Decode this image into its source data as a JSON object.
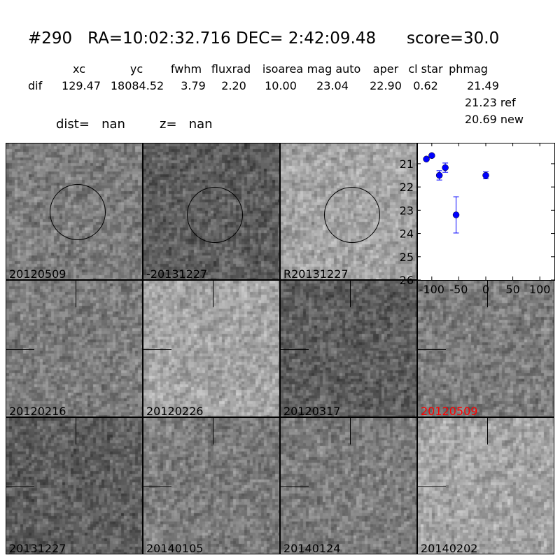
{
  "title": "#290   RA=10:02:32.716 DEC= 2:42:09.48      score=30.0",
  "table": {
    "headers": [
      "xc",
      "yc",
      "fwhm",
      "fluxrad",
      "isoarea",
      "mag auto",
      "aper",
      "cl star",
      "phmag"
    ],
    "row_label": "dif",
    "values": [
      "129.47",
      "18084.52",
      "3.79",
      "2.20",
      "10.00",
      "23.04",
      "22.90",
      "0.62",
      "21.49"
    ],
    "phmag_ref": "21.23 ref",
    "phmag_new": "20.69 new"
  },
  "dist": "dist=   nan",
  "z": "z=   nan",
  "stamps": [
    {
      "label": "20120509",
      "mark": "circle",
      "tone": "mid"
    },
    {
      "label": "-20131227",
      "mark": "circle",
      "tone": "dark"
    },
    {
      "label": "R20131227",
      "mark": "circle",
      "tone": "light"
    },
    {
      "label": "20120216",
      "mark": "cross",
      "tone": "mid"
    },
    {
      "label": "20120226",
      "mark": "cross",
      "tone": "light"
    },
    {
      "label": "20120317",
      "mark": "cross",
      "tone": "dark"
    },
    {
      "label": "20120509",
      "mark": "cross",
      "tone": "mid",
      "color": "#ff0000"
    },
    {
      "label": "20131227",
      "mark": "cross",
      "tone": "dark"
    },
    {
      "label": "20140105",
      "mark": "cross",
      "tone": "mid"
    },
    {
      "label": "20140124",
      "mark": "cross",
      "tone": "mid"
    },
    {
      "label": "20140202",
      "mark": "cross",
      "tone": "light"
    }
  ],
  "chart_data": {
    "type": "scatter",
    "x": [
      -110,
      -100,
      -86,
      -75,
      -55,
      0
    ],
    "y": [
      20.8,
      20.65,
      21.5,
      21.17,
      23.2,
      21.5
    ],
    "yerr": [
      0.05,
      0.05,
      0.2,
      0.2,
      0.78,
      0.15
    ],
    "xlim": [
      -127,
      127
    ],
    "ylim": [
      26,
      20.1
    ],
    "y_inverted": true,
    "xticks": [
      "-100",
      "-50",
      "0",
      "50",
      "100"
    ],
    "xtick_values": [
      -100,
      -50,
      0,
      50,
      100
    ],
    "yticks": [
      "21",
      "22",
      "23",
      "24",
      "25",
      "26"
    ],
    "ytick_values": [
      21,
      22,
      23,
      24,
      25,
      26
    ],
    "color": "#0000ff"
  }
}
